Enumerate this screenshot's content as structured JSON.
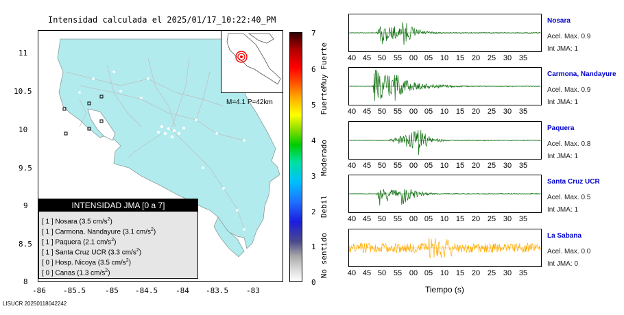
{
  "map": {
    "title": "Intensidad calculada el 2025/01/17_10:22:40_PM",
    "y_ticks": [
      "11",
      "10.5",
      "10",
      "9.5",
      "9",
      "8.5",
      "8"
    ],
    "x_ticks": [
      "-86",
      "-85.5",
      "-85",
      "-84.5",
      "-84",
      "-83.5",
      "-83"
    ],
    "inset_label": "M=4.1 P=42km",
    "land_color": "#b2ebee",
    "stations": [
      "Nosara",
      "Carmona, Nandayure",
      "Paquera",
      "Santa Cruz UCR",
      "Hosp. Nicoya",
      "Canas"
    ]
  },
  "legend": {
    "title": "INTENSIDAD JMA [0 a 7]",
    "items": [
      {
        "level": "[ 1 ]",
        "name": "Nosara",
        "value": "(3.5 cm/s",
        "sup": "2",
        "close": ")"
      },
      {
        "level": "[ 1 ]",
        "name": "Carmona. Nandayure",
        "value": "(3.1 cm/s",
        "sup": "2",
        "close": ")"
      },
      {
        "level": "[ 1 ]",
        "name": "Paquera",
        "value": "(2.1 cm/s",
        "sup": "2",
        "close": ")"
      },
      {
        "level": "[ 1 ]",
        "name": "Santa Cruz UCR",
        "value": "(3.3 cm/s",
        "sup": "2",
        "close": ")"
      },
      {
        "level": "[ 0 ]",
        "name": "Hosp. Nicoya",
        "value": "(3.5 cm/s",
        "sup": "2",
        "close": ")"
      },
      {
        "level": "[ 0 ]",
        "name": "Canas",
        "value": "(1.3 cm/s",
        "sup": "2",
        "close": ")"
      }
    ]
  },
  "colorbar": {
    "numbers": [
      "7",
      "6",
      "5",
      "4",
      "3",
      "2",
      "1",
      "0"
    ],
    "words": [
      {
        "text": "Muy Fuerte"
      },
      {
        "text": "Fuerte"
      },
      {
        "text": "Moderado"
      },
      {
        "text": "Debil"
      },
      {
        "text": "No sentido"
      }
    ]
  },
  "traces": {
    "x_ticks": [
      "40",
      "45",
      "50",
      "55",
      "00",
      "05",
      "10",
      "15",
      "20",
      "25",
      "30",
      "35"
    ],
    "x_label": "Tiempo (s)",
    "items": [
      {
        "station": "Nosara",
        "acel": "Acel. Max. 0.9",
        "int": "Int JMA: 1",
        "color": "#0a6b0a"
      },
      {
        "station": "Carmona, Nandayure",
        "acel": "Acel. Max. 0.9",
        "int": "Int JMA: 1",
        "color": "#0a6b0a"
      },
      {
        "station": "Paquera",
        "acel": "Acel. Max. 0.8",
        "int": "Int JMA: 1",
        "color": "#0a6b0a"
      },
      {
        "station": "Santa Cruz UCR",
        "acel": "Acel. Max. 0.5",
        "int": "Int JMA: 1",
        "color": "#0a6b0a"
      },
      {
        "station": "La Sabana",
        "acel": "Acel. Max. 0.0",
        "int": "Int JMA: 0",
        "color": "#ffaa00"
      }
    ]
  },
  "footer": "LISUCR 20250118042242"
}
